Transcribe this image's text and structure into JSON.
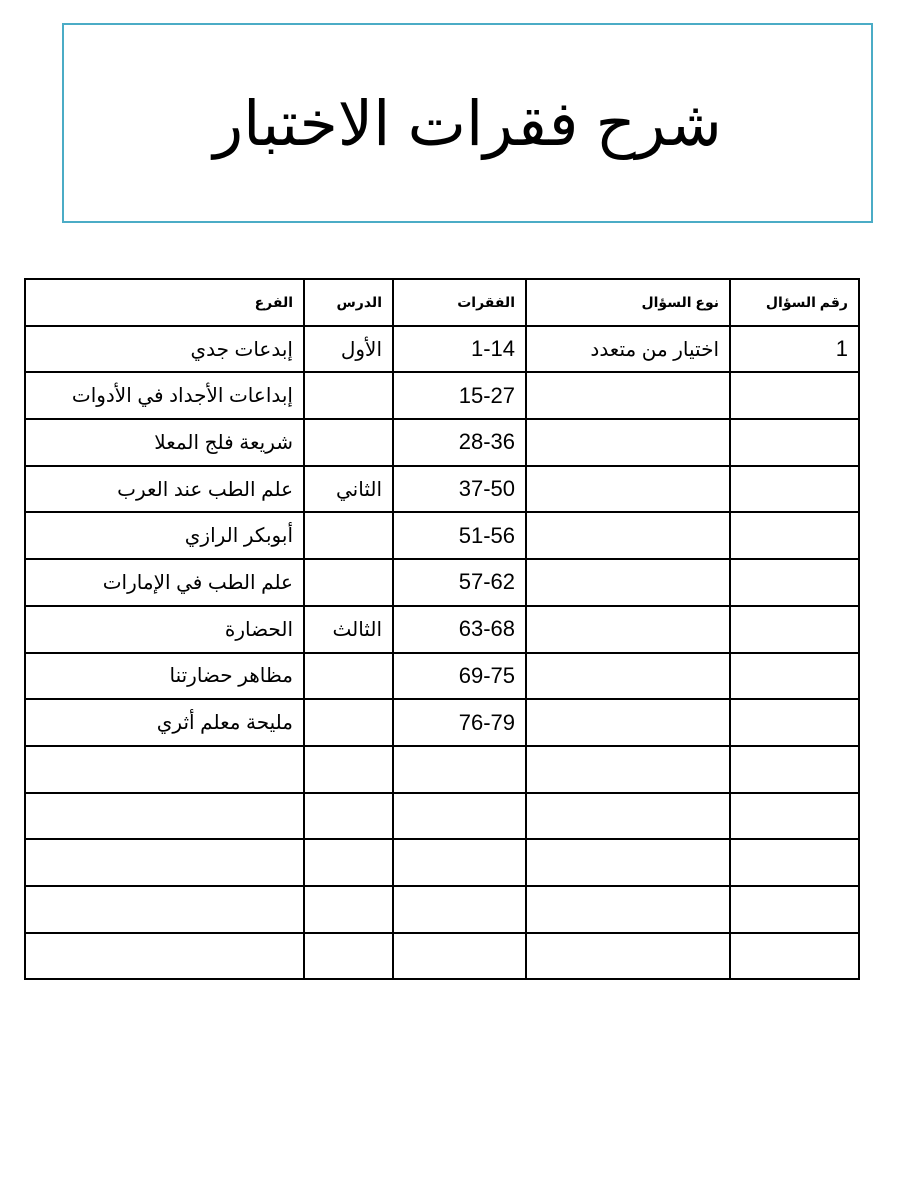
{
  "header": {
    "title": "شرح فقرات الاختبار"
  },
  "table": {
    "header": {
      "number": "رقم السؤال",
      "type": "نوع السؤال",
      "items": "الفقرات",
      "lesson": "الدرس",
      "branch": "الفرع"
    },
    "rows": [
      {
        "number": "1",
        "type": "اختيار من متعدد",
        "items": "1-14",
        "lesson": "الأول",
        "branch": "إبدعات جدي"
      },
      {
        "items": "15-27",
        "branch": "إبداعات الأجداد في الأدوات"
      },
      {
        "items": "28-36",
        "branch": "شريعة فلج المعلا"
      },
      {
        "items": "37-50",
        "lesson": "الثاني",
        "branch": "علم الطب عند العرب"
      },
      {
        "items": "51-56",
        "branch": "أبوبكر الرازي"
      },
      {
        "items": "57-62",
        "branch": "علم الطب في الإمارات"
      },
      {
        "items": "63-68",
        "lesson": "الثالث",
        "branch": "الحضارة"
      },
      {
        "items": "69-75",
        "branch": "مظاهر حضارتنا"
      },
      {
        "items": "76-79",
        "branch": "مليحة معلم أثري"
      }
    ]
  }
}
